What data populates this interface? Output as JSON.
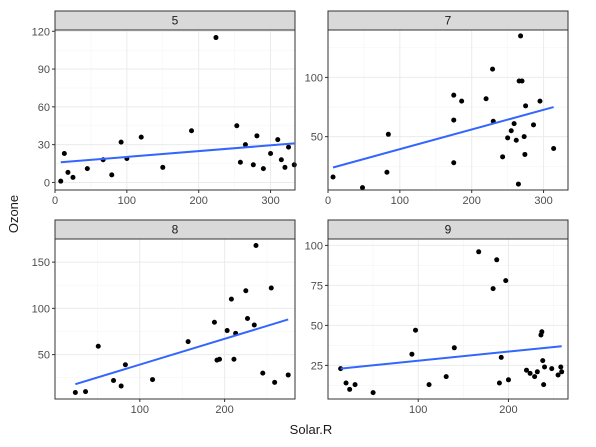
{
  "chart_data": {
    "type": "scatter",
    "xlabel": "Solar.R",
    "ylabel": "Ozone",
    "colors": {
      "points": "#000000",
      "trend": "#3366ff",
      "strip": "#d9d9d9",
      "grid": "#ebebeb"
    },
    "panels": [
      {
        "label": "5",
        "xlim": [
          0,
          334
        ],
        "ylim": [
          -6,
          121
        ],
        "xticks": [
          0,
          100,
          200,
          300
        ],
        "yticks": [
          0,
          30,
          60,
          90,
          120
        ],
        "points": [
          [
            8,
            1
          ],
          [
            13,
            23
          ],
          [
            18,
            8
          ],
          [
            25,
            4
          ],
          [
            45,
            11
          ],
          [
            67,
            18
          ],
          [
            79,
            6
          ],
          [
            92,
            32
          ],
          [
            100,
            19
          ],
          [
            120,
            36
          ],
          [
            150,
            12
          ],
          [
            190,
            41
          ],
          [
            224,
            115
          ],
          [
            253,
            45
          ],
          [
            258,
            16
          ],
          [
            265,
            30
          ],
          [
            276,
            14
          ],
          [
            281,
            37
          ],
          [
            290,
            11
          ],
          [
            300,
            23
          ],
          [
            310,
            34
          ],
          [
            315,
            18
          ],
          [
            320,
            12
          ],
          [
            325,
            28
          ],
          [
            333,
            14
          ]
        ],
        "trend": [
          [
            8,
            16
          ],
          [
            333,
            31
          ]
        ]
      },
      {
        "label": "7",
        "xlim": [
          0,
          334
        ],
        "ylim": [
          5,
          140
        ],
        "xticks": [
          0,
          100,
          200,
          300
        ],
        "yticks": [
          50,
          100
        ],
        "points": [
          [
            7,
            16
          ],
          [
            48,
            7
          ],
          [
            82,
            20
          ],
          [
            84,
            52
          ],
          [
            175,
            28
          ],
          [
            175,
            64
          ],
          [
            175,
            85
          ],
          [
            186,
            80
          ],
          [
            220,
            82
          ],
          [
            229,
            107
          ],
          [
            230,
            63
          ],
          [
            243,
            33
          ],
          [
            250,
            49
          ],
          [
            255,
            55
          ],
          [
            259,
            61
          ],
          [
            262,
            47
          ],
          [
            265,
            10
          ],
          [
            266,
            97
          ],
          [
            268,
            135
          ],
          [
            270,
            97
          ],
          [
            273,
            50
          ],
          [
            274,
            35
          ],
          [
            275,
            76
          ],
          [
            286,
            60
          ],
          [
            295,
            80
          ],
          [
            314,
            40
          ]
        ],
        "trend": [
          [
            7,
            24
          ],
          [
            314,
            75
          ]
        ]
      },
      {
        "label": "8",
        "xlim": [
          0,
          283
        ],
        "ylim": [
          2,
          175
        ],
        "xticks": [
          100,
          200
        ],
        "yticks": [
          50,
          100,
          150
        ],
        "points": [
          [
            24,
            9
          ],
          [
            36,
            10
          ],
          [
            51,
            59
          ],
          [
            69,
            22
          ],
          [
            78,
            16
          ],
          [
            83,
            39
          ],
          [
            115,
            23
          ],
          [
            157,
            64
          ],
          [
            188,
            85
          ],
          [
            191,
            44
          ],
          [
            194,
            45
          ],
          [
            203,
            76
          ],
          [
            208,
            110
          ],
          [
            211,
            45
          ],
          [
            213,
            73
          ],
          [
            225,
            119
          ],
          [
            227,
            89
          ],
          [
            235,
            82
          ],
          [
            237,
            168
          ],
          [
            245,
            30
          ],
          [
            255,
            122
          ],
          [
            259,
            20
          ],
          [
            275,
            28
          ]
        ],
        "trend": [
          [
            24,
            18
          ],
          [
            275,
            88
          ]
        ]
      },
      {
        "label": "9",
        "xlim": [
          0,
          266
        ],
        "ylim": [
          4,
          104
        ],
        "xticks": [
          100,
          200
        ],
        "yticks": [
          25,
          50,
          75,
          100
        ],
        "points": [
          [
            14,
            23
          ],
          [
            20,
            14
          ],
          [
            24,
            10
          ],
          [
            30,
            13
          ],
          [
            50,
            8
          ],
          [
            93,
            32
          ],
          [
            97,
            47
          ],
          [
            112,
            13
          ],
          [
            131,
            18
          ],
          [
            140,
            36
          ],
          [
            167,
            96
          ],
          [
            183,
            73
          ],
          [
            187,
            91
          ],
          [
            190,
            14
          ],
          [
            192,
            30
          ],
          [
            197,
            78
          ],
          [
            200,
            16
          ],
          [
            220,
            22
          ],
          [
            224,
            20
          ],
          [
            229,
            18
          ],
          [
            232,
            21
          ],
          [
            236,
            44
          ],
          [
            237,
            46
          ],
          [
            238,
            28
          ],
          [
            239,
            13
          ],
          [
            240,
            24
          ],
          [
            248,
            23
          ],
          [
            255,
            19
          ],
          [
            258,
            24
          ],
          [
            259,
            21
          ]
        ],
        "trend": [
          [
            14,
            23
          ],
          [
            259,
            37
          ]
        ]
      }
    ]
  }
}
